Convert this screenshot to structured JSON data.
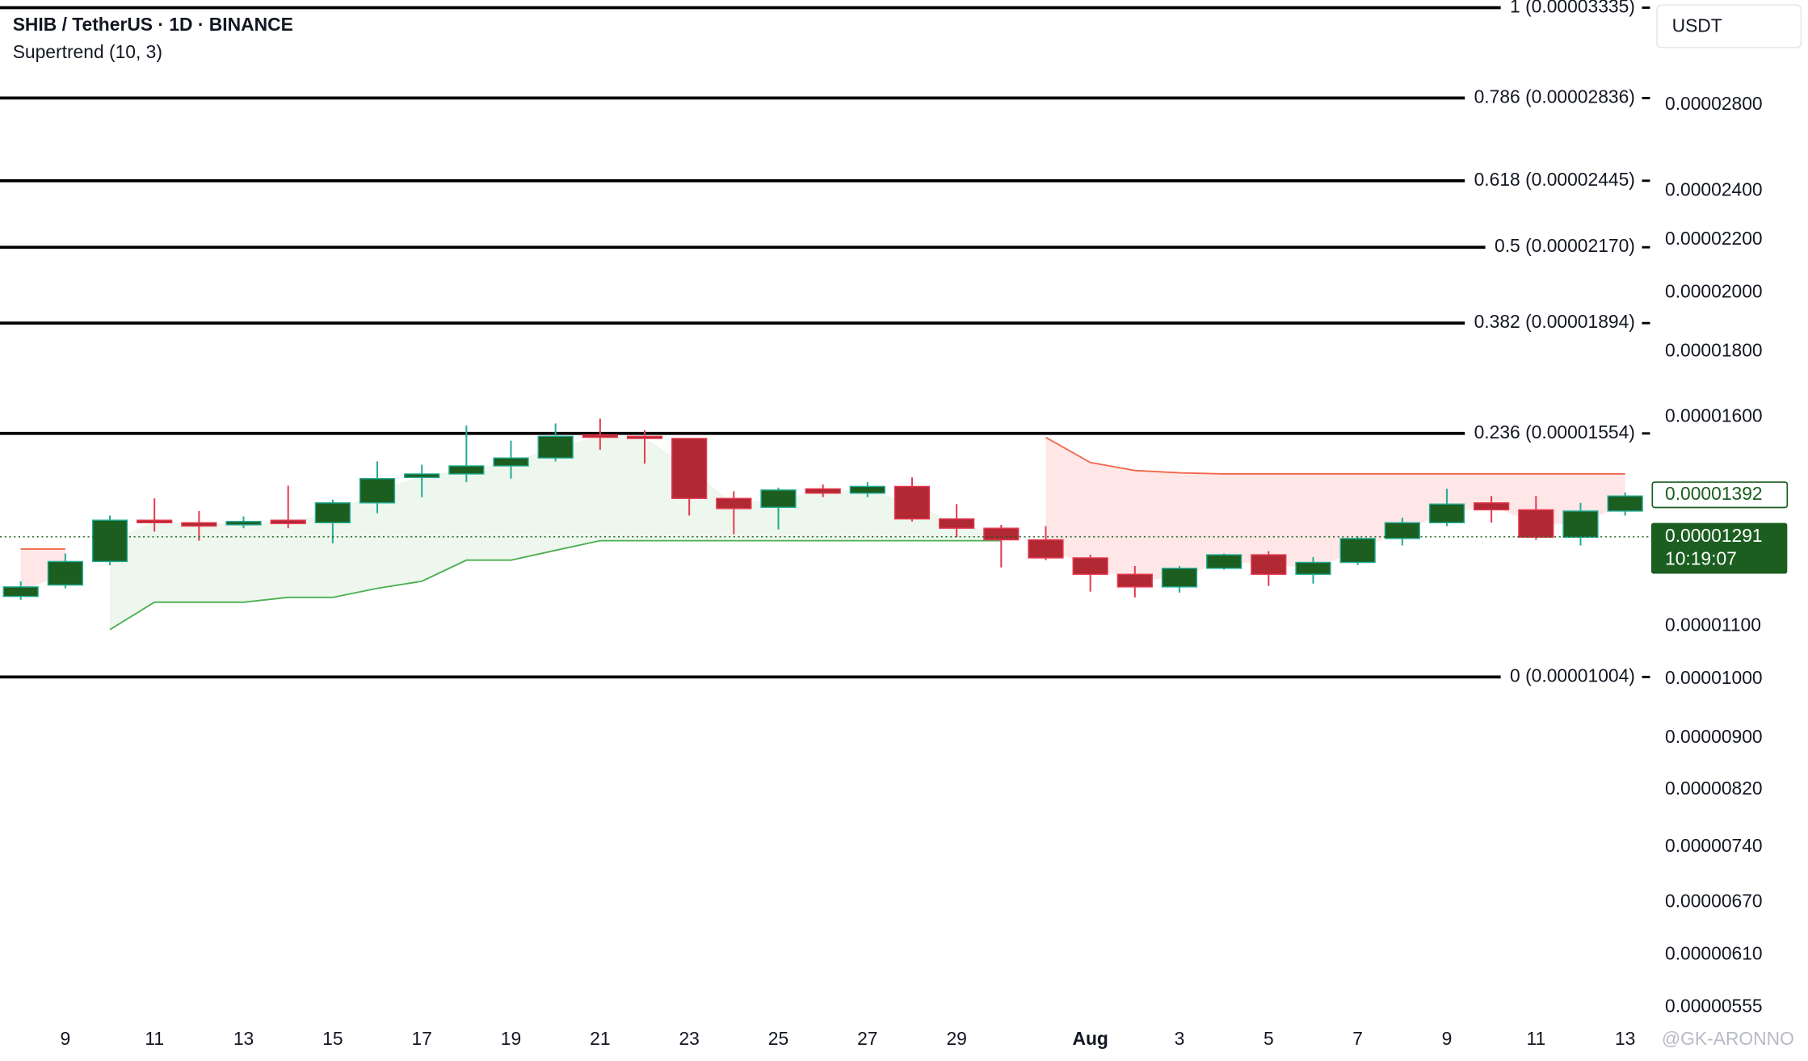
{
  "chart_data": {
    "type": "candlestick",
    "title": "SHIB / TetherUS · 1D · BINANCE",
    "currency": "USDT",
    "watermark": "@GK-ARONNO",
    "log_scale": true,
    "categories": [
      null,
      "9",
      null,
      "11",
      null,
      "13",
      null,
      "15",
      null,
      "17",
      null,
      "19",
      null,
      "21",
      null,
      "23",
      null,
      "25",
      null,
      "27",
      null,
      "29",
      null,
      null,
      "Aug",
      null,
      "3",
      null,
      "5",
      null,
      "7",
      null,
      "9",
      null,
      "11",
      null,
      "13"
    ],
    "open": [
      1.16e-05,
      1.184e-05,
      1.235e-05,
      1.33e-05,
      1.324e-05,
      1.319e-05,
      1.33e-05,
      1.324e-05,
      1.372e-05,
      1.436e-05,
      1.445e-05,
      1.466e-05,
      1.487e-05,
      1.55e-05,
      1.546e-05,
      1.54e-05,
      1.383e-05,
      1.361e-05,
      1.407e-05,
      1.396e-05,
      1.413e-05,
      1.333e-05,
      1.311e-05,
      1.284e-05,
      1.243e-05,
      1.207e-05,
      1.18e-05,
      1.22e-05,
      1.25e-05,
      1.207e-05,
      1.233e-05,
      1.287e-05,
      1.324e-05,
      1.372e-05,
      1.355e-05,
      1.29e-05,
      1.352e-05
    ],
    "high": [
      1.192e-05,
      1.253e-05,
      1.341e-05,
      1.383e-05,
      1.352e-05,
      1.339e-05,
      1.415e-05,
      1.38e-05,
      1.478e-05,
      1.469e-05,
      1.576e-05,
      1.534e-05,
      1.582e-05,
      1.596e-05,
      1.563e-05,
      1.54e-05,
      1.401e-05,
      1.41e-05,
      1.418e-05,
      1.424e-05,
      1.436e-05,
      1.369e-05,
      1.319e-05,
      1.316e-05,
      1.25e-05,
      1.225e-05,
      1.225e-05,
      1.253e-05,
      1.258e-05,
      1.245e-05,
      1.292e-05,
      1.336e-05,
      1.407e-05,
      1.389e-05,
      1.389e-05,
      1.372e-05,
      1.398e-05
    ],
    "low": [
      1.153e-05,
      1.177e-05,
      1.227e-05,
      1.303e-05,
      1.282e-05,
      1.311e-05,
      1.311e-05,
      1.276e-05,
      1.347e-05,
      1.386e-05,
      1.424e-05,
      1.433e-05,
      1.478e-05,
      1.509e-05,
      1.472e-05,
      1.341e-05,
      1.297e-05,
      1.308e-05,
      1.386e-05,
      1.386e-05,
      1.327e-05,
      1.29e-05,
      1.222e-05,
      1.238e-05,
      1.17e-05,
      1.158e-05,
      1.168e-05,
      1.217e-05,
      1.182e-05,
      1.187e-05,
      1.227e-05,
      1.271e-05,
      1.316e-05,
      1.324e-05,
      1.284e-05,
      1.271e-05,
      1.341e-05
    ],
    "close": [
      1.18e-05,
      1.235e-05,
      1.33e-05,
      1.324e-05,
      1.316e-05,
      1.327e-05,
      1.322e-05,
      1.372e-05,
      1.433e-05,
      1.445e-05,
      1.466e-05,
      1.487e-05,
      1.546e-05,
      1.543e-05,
      1.54e-05,
      1.383e-05,
      1.358e-05,
      1.404e-05,
      1.396e-05,
      1.413e-05,
      1.333e-05,
      1.311e-05,
      1.284e-05,
      1.243e-05,
      1.207e-05,
      1.18e-05,
      1.22e-05,
      1.25e-05,
      1.207e-05,
      1.233e-05,
      1.287e-05,
      1.324e-05,
      1.369e-05,
      1.355e-05,
      1.29e-05,
      1.352e-05,
      1.389e-05
    ],
    "up_color": "#1b5e20",
    "up_border": "#22ab94",
    "down_color": "#b22833",
    "down_border": "#e53950",
    "supertrend": {
      "label": "Supertrend (10, 3)",
      "up": {
        "color": "#4caf50",
        "fill": "rgba(76,175,80,0.10)",
        "values": [
          null,
          null,
          1.093e-05,
          1.148e-05,
          1.148e-05,
          1.148e-05,
          1.158e-05,
          1.158e-05,
          1.177e-05,
          1.192e-05,
          1.238e-05,
          1.238e-05,
          1.26e-05,
          1.282e-05,
          1.282e-05,
          1.282e-05,
          1.282e-05,
          1.282e-05,
          1.282e-05,
          1.282e-05,
          1.282e-05,
          1.282e-05,
          1.282e-05,
          null,
          null,
          null,
          null,
          null,
          null,
          null,
          null,
          null,
          null,
          null,
          null,
          null,
          null
        ]
      },
      "down": {
        "color": "#f2664a",
        "fill": "rgba(255,82,82,0.14)",
        "values": [
          1.263e-05,
          1.263e-05,
          null,
          null,
          null,
          null,
          null,
          null,
          null,
          null,
          null,
          null,
          null,
          null,
          null,
          null,
          null,
          null,
          null,
          null,
          null,
          null,
          null,
          1.543e-05,
          1.475e-05,
          1.454e-05,
          1.448e-05,
          1.445e-05,
          1.445e-05,
          1.445e-05,
          1.445e-05,
          1.445e-05,
          1.445e-05,
          1.445e-05,
          1.445e-05,
          1.445e-05,
          1.445e-05
        ]
      }
    },
    "fib_levels": [
      {
        "value": 3.335e-05,
        "label": "1 (0.00003335)"
      },
      {
        "value": 2.836e-05,
        "label": "0.786 (0.00002836)"
      },
      {
        "value": 2.445e-05,
        "label": "0.618 (0.00002445)"
      },
      {
        "value": 2.17e-05,
        "label": "0.5 (0.00002170)"
      },
      {
        "value": 1.894e-05,
        "label": "0.382 (0.00001894)"
      },
      {
        "value": 1.554e-05,
        "label": "0.236 (0.00001554)"
      },
      {
        "value": 1.004e-05,
        "label": "0 (0.00001004)"
      }
    ],
    "price_labels": [
      {
        "value": 1.392e-05,
        "label": "0.00001392"
      },
      {
        "value": 1.291e-05,
        "label": "0.00001291",
        "countdown": "10:19:07"
      }
    ],
    "ylim": [
      5.39e-06,
      3.379e-05
    ],
    "yticks": [
      {
        "value": 2.8e-05,
        "label": "0.00002800"
      },
      {
        "value": 2.4e-05,
        "label": "0.00002400"
      },
      {
        "value": 2.2e-05,
        "label": "0.00002200"
      },
      {
        "value": 2e-05,
        "label": "0.00002000"
      },
      {
        "value": 1.8e-05,
        "label": "0.00001800"
      },
      {
        "value": 1.6e-05,
        "label": "0.00001600"
      },
      {
        "value": 1.1e-05,
        "label": "0.00001100"
      },
      {
        "value": 1e-05,
        "label": "0.00001000"
      },
      {
        "value": 9e-06,
        "label": "0.00000900"
      },
      {
        "value": 8.2e-06,
        "label": "0.00000820"
      },
      {
        "value": 7.4e-06,
        "label": "0.00000740"
      },
      {
        "value": 6.7e-06,
        "label": "0.00000670"
      },
      {
        "value": 6.1e-06,
        "label": "0.00000610"
      },
      {
        "value": 5.55e-06,
        "label": "0.00000555"
      }
    ]
  }
}
